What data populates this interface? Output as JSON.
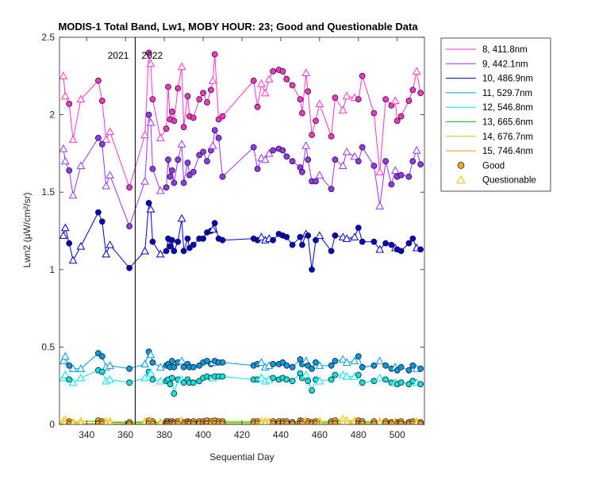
{
  "chart_data": {
    "type": "scatter",
    "title": "MODIS-1 Total Band, Lw1, MOBY HOUR: 23;  Good and Questionable Data",
    "xlabel": "Sequential Day",
    "ylabel": "Lwn2 (μW/cm²/sr)",
    "xlim": [
      326,
      514
    ],
    "ylim": [
      0,
      2.5
    ],
    "xticks": [
      340,
      360,
      380,
      400,
      420,
      440,
      460,
      480,
      500
    ],
    "yticks": [
      0,
      0.5,
      1,
      1.5,
      2,
      2.5
    ],
    "xtick_labels": [
      "340",
      "360",
      "380",
      "400",
      "420",
      "440",
      "460",
      "480",
      "500"
    ],
    "ytick_labels": [
      "0",
      "0.5",
      "1",
      "1.5",
      "2",
      "2.5"
    ],
    "grid": false,
    "legend_position": "outside-right",
    "year_divider": {
      "x": 365,
      "left_label": "2021",
      "right_label": "2022"
    },
    "days": [
      328,
      329,
      331,
      333,
      337,
      346,
      348,
      350,
      352,
      362,
      370,
      372,
      373,
      374,
      378,
      381,
      382,
      383,
      384,
      385,
      387,
      389,
      390,
      392,
      393,
      395,
      398,
      400,
      402,
      404,
      405,
      406,
      408,
      410,
      426,
      428,
      430,
      432,
      434,
      436,
      439,
      441,
      443,
      446,
      450,
      451,
      453,
      454,
      456,
      458,
      460,
      466,
      468,
      472,
      474,
      478,
      480,
      482,
      488,
      491,
      494,
      497,
      499,
      500,
      502,
      506,
      508,
      510,
      512
    ],
    "series": [
      {
        "name": "8, 411.8nm",
        "color": "#ff33cc",
        "values": [
          2.25,
          2.12,
          2.07,
          1.84,
          2.1,
          2.22,
          2.09,
          1.84,
          1.89,
          1.53,
          1.87,
          2.4,
          2.33,
          2.1,
          1.85,
          1.91,
          2.18,
          1.97,
          2.02,
          1.96,
          2.17,
          2.31,
          1.92,
          2.12,
          1.99,
          1.98,
          2.1,
          2.14,
          2.08,
          2.16,
          2.22,
          2.39,
          1.97,
          1.99,
          2.22,
          2.05,
          2.2,
          2.14,
          2.23,
          2.28,
          2.29,
          2.28,
          2.23,
          2.19,
          2.1,
          2.01,
          2.27,
          2.15,
          1.87,
          1.96,
          2.07,
          1.86,
          2.11,
          2.03,
          2.12,
          2.11,
          2.1,
          2.25,
          2.01,
          1.63,
          2.1,
          2.06,
          2.09,
          1.96,
          1.99,
          2.09,
          2.16,
          2.28,
          2.14
        ]
      },
      {
        "name": "9, 442.1nm",
        "color": "#9933ff",
        "values": [
          1.78,
          1.7,
          1.64,
          1.48,
          1.67,
          1.85,
          1.81,
          1.54,
          1.61,
          1.28,
          1.57,
          2.0,
          1.95,
          1.65,
          1.51,
          1.53,
          1.71,
          1.6,
          1.64,
          1.56,
          1.71,
          1.81,
          1.56,
          1.69,
          1.61,
          1.63,
          1.74,
          1.76,
          1.7,
          1.77,
          1.8,
          1.9,
          1.85,
          1.6,
          1.79,
          1.65,
          1.72,
          1.71,
          1.75,
          1.77,
          1.78,
          1.77,
          1.73,
          1.7,
          1.66,
          1.63,
          1.8,
          1.71,
          1.57,
          1.57,
          1.61,
          1.52,
          1.71,
          1.67,
          1.76,
          1.73,
          1.7,
          1.79,
          1.67,
          1.41,
          1.7,
          1.55,
          1.64,
          1.6,
          1.61,
          1.6,
          1.7,
          1.77,
          1.68
        ]
      },
      {
        "name": "10, 486.9nm",
        "color": "#0000cc",
        "values": [
          1.22,
          1.27,
          1.17,
          1.06,
          1.15,
          1.37,
          1.31,
          1.1,
          1.16,
          1.01,
          1.12,
          1.43,
          1.39,
          1.18,
          1.1,
          1.12,
          1.2,
          1.15,
          1.19,
          1.12,
          1.18,
          1.33,
          1.12,
          1.2,
          1.14,
          1.16,
          1.2,
          1.2,
          1.24,
          1.25,
          1.26,
          1.3,
          1.2,
          1.19,
          1.2,
          1.19,
          1.21,
          1.19,
          1.2,
          1.19,
          1.23,
          1.22,
          1.21,
          1.16,
          1.21,
          1.16,
          1.23,
          1.22,
          1.0,
          1.19,
          1.22,
          1.12,
          1.22,
          1.21,
          1.2,
          1.21,
          1.27,
          1.18,
          1.18,
          1.13,
          1.17,
          1.16,
          1.14,
          1.13,
          1.12,
          1.17,
          1.2,
          1.14,
          1.13
        ]
      },
      {
        "name": "11, 529.7nm",
        "color": "#0099e6",
        "values": [
          0.41,
          0.44,
          0.38,
          0.36,
          0.36,
          0.46,
          0.44,
          0.37,
          0.38,
          0.36,
          0.39,
          0.47,
          0.45,
          0.4,
          0.37,
          0.38,
          0.39,
          0.37,
          0.41,
          0.37,
          0.4,
          0.41,
          0.37,
          0.39,
          0.37,
          0.37,
          0.38,
          0.4,
          0.41,
          0.39,
          0.4,
          0.41,
          0.4,
          0.4,
          0.38,
          0.39,
          0.4,
          0.37,
          0.38,
          0.39,
          0.39,
          0.4,
          0.38,
          0.37,
          0.42,
          0.39,
          0.41,
          0.38,
          0.36,
          0.4,
          0.38,
          0.38,
          0.41,
          0.42,
          0.4,
          0.41,
          0.44,
          0.37,
          0.38,
          0.41,
          0.38,
          0.36,
          0.37,
          0.35,
          0.37,
          0.35,
          0.38,
          0.36,
          0.36
        ]
      },
      {
        "name": "12, 546.8nm",
        "color": "#00e6e6",
        "values": [
          0.3,
          0.32,
          0.29,
          0.27,
          0.3,
          0.35,
          0.34,
          0.28,
          0.29,
          0.27,
          0.3,
          0.34,
          0.33,
          0.29,
          0.28,
          0.28,
          0.29,
          0.26,
          0.3,
          0.2,
          0.29,
          0.29,
          0.27,
          0.29,
          0.27,
          0.27,
          0.28,
          0.3,
          0.31,
          0.3,
          0.3,
          0.31,
          0.31,
          0.31,
          0.29,
          0.29,
          0.3,
          0.28,
          0.29,
          0.3,
          0.29,
          0.3,
          0.29,
          0.28,
          0.33,
          0.3,
          0.32,
          0.28,
          0.22,
          0.29,
          0.28,
          0.29,
          0.32,
          0.32,
          0.31,
          0.31,
          0.32,
          0.27,
          0.28,
          0.3,
          0.29,
          0.27,
          0.27,
          0.26,
          0.27,
          0.26,
          0.28,
          0.27,
          0.26
        ]
      },
      {
        "name": "13, 665.6nm",
        "color": "#00cc00",
        "values": [
          0.02,
          0.025,
          0.015,
          0.01,
          0.02,
          0.02,
          0.015,
          0.015,
          0.015,
          0.01,
          0.015,
          0.02,
          0.02,
          0.015,
          0.01,
          0.015,
          0.015,
          0.01,
          0.015,
          0.01,
          0.015,
          0.02,
          0.01,
          0.015,
          0.01,
          0.015,
          0.015,
          0.015,
          0.02,
          0.015,
          0.015,
          0.02,
          0.015,
          0.015,
          0.015,
          0.015,
          0.015,
          0.015,
          0.015,
          0.015,
          0.015,
          0.015,
          0.015,
          0.01,
          0.02,
          0.015,
          0.02,
          0.015,
          0.01,
          0.015,
          0.015,
          0.015,
          0.02,
          0.025,
          0.02,
          0.02,
          0.02,
          0.015,
          0.015,
          0.015,
          0.015,
          0.01,
          0.015,
          0.01,
          0.015,
          0.01,
          0.015,
          0.015,
          0.01
        ]
      },
      {
        "name": "14, 676.7nm",
        "color": "#99e600",
        "values": [
          0.025,
          0.03,
          0.02,
          0.015,
          0.02,
          0.025,
          0.02,
          0.02,
          0.02,
          0.015,
          0.02,
          0.025,
          0.025,
          0.02,
          0.015,
          0.02,
          0.02,
          0.015,
          0.02,
          0.015,
          0.02,
          0.025,
          0.015,
          0.02,
          0.015,
          0.02,
          0.02,
          0.02,
          0.025,
          0.02,
          0.02,
          0.025,
          0.02,
          0.02,
          0.02,
          0.02,
          0.02,
          0.02,
          0.02,
          0.02,
          0.02,
          0.02,
          0.02,
          0.015,
          0.025,
          0.02,
          0.025,
          0.02,
          0.015,
          0.02,
          0.02,
          0.02,
          0.025,
          0.035,
          0.025,
          0.025,
          0.025,
          0.02,
          0.02,
          0.02,
          0.02,
          0.015,
          0.02,
          0.015,
          0.02,
          0.015,
          0.02,
          0.02,
          0.015
        ]
      },
      {
        "name": "15, 746.4nm",
        "color": "#e69900",
        "values": [
          0.005,
          0.008,
          0.004,
          0.003,
          0.005,
          0.006,
          0.005,
          0.004,
          0.005,
          0.003,
          0.005,
          0.006,
          0.006,
          0.005,
          0.004,
          0.004,
          0.005,
          0.003,
          0.005,
          0.003,
          0.005,
          0.006,
          0.004,
          0.005,
          0.004,
          0.004,
          0.005,
          0.005,
          0.006,
          0.005,
          0.005,
          0.006,
          0.005,
          0.005,
          0.005,
          0.005,
          0.005,
          0.005,
          0.005,
          0.005,
          0.005,
          0.005,
          0.005,
          0.004,
          0.006,
          0.005,
          0.006,
          0.005,
          0.003,
          0.005,
          0.005,
          0.005,
          0.006,
          0.008,
          0.006,
          0.006,
          0.006,
          0.005,
          0.005,
          0.005,
          0.005,
          0.004,
          0.005,
          0.004,
          0.005,
          0.004,
          0.005,
          0.005,
          0.004
        ]
      }
    ],
    "quality": [
      "Q",
      "Q",
      "G",
      "Q",
      "Q",
      "G",
      "G",
      "Q",
      "Q",
      "G",
      "Q",
      "G",
      "Q",
      "G",
      "Q",
      "G",
      "G",
      "G",
      "G",
      "G",
      "G",
      "Q",
      "G",
      "G",
      "G",
      "G",
      "G",
      "G",
      "G",
      "G",
      "Q",
      "G",
      "G",
      "G",
      "G",
      "G",
      "Q",
      "Q",
      "Q",
      "G",
      "G",
      "G",
      "G",
      "G",
      "G",
      "G",
      "Q",
      "G",
      "G",
      "G",
      "Q",
      "G",
      "G",
      "Q",
      "Q",
      "Q",
      "G",
      "G",
      "G",
      "Q",
      "G",
      "G",
      "Q",
      "G",
      "G",
      "G",
      "G",
      "Q",
      "G"
    ],
    "quality_legend": [
      {
        "key": "G",
        "name": "Good",
        "marker": "circle",
        "fill": "#f5a623",
        "stroke": "#222222"
      },
      {
        "key": "Q",
        "name": "Questionable",
        "marker": "triangle",
        "fill": "none",
        "stroke": "#f2c200"
      }
    ]
  }
}
